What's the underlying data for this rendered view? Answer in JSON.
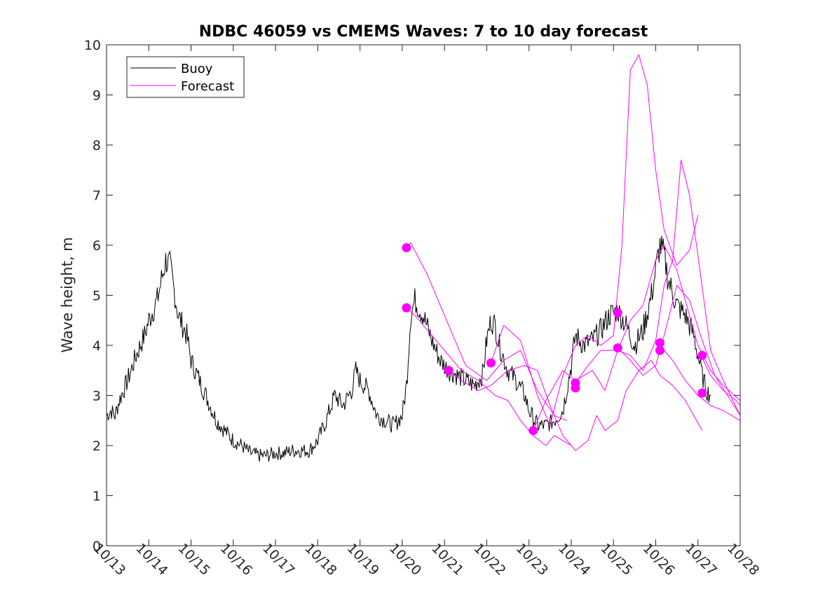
{
  "chart_data": {
    "type": "line",
    "title": "NDBC 46059 vs CMEMS Waves: 7 to 10 day forecast",
    "xlabel": "",
    "ylabel": "Wave height, m",
    "xlim": [
      13,
      28
    ],
    "ylim": [
      0,
      10
    ],
    "yticks": [
      0,
      1,
      2,
      3,
      4,
      5,
      6,
      7,
      8,
      9,
      10
    ],
    "xticks": [
      13,
      14,
      15,
      16,
      17,
      18,
      19,
      20,
      21,
      22,
      23,
      24,
      25,
      26,
      27,
      28
    ],
    "xtick_labels": [
      "10/13",
      "10/14",
      "10/15",
      "10/16",
      "10/17",
      "10/18",
      "10/19",
      "10/20",
      "10/21",
      "10/22",
      "10/23",
      "10/24",
      "10/25",
      "10/26",
      "10/27",
      "10/28"
    ],
    "legend": {
      "position": "top-left",
      "entries": [
        "Buoy",
        "Forecast"
      ]
    },
    "colors": {
      "buoy": "#000000",
      "forecast": "#ff00ff"
    },
    "series": [
      {
        "name": "Buoy",
        "x": [
          13.0,
          13.1,
          13.2,
          13.3,
          13.5,
          13.7,
          13.9,
          14.0,
          14.2,
          14.3,
          14.4,
          14.5,
          14.6,
          14.7,
          14.9,
          15.0,
          15.2,
          15.4,
          15.6,
          15.8,
          16.0,
          16.2,
          16.4,
          16.6,
          16.8,
          17.0,
          17.2,
          17.4,
          17.6,
          17.8,
          18.0,
          18.2,
          18.4,
          18.6,
          18.8,
          18.9,
          19.0,
          19.2,
          19.4,
          19.6,
          19.8,
          20.0,
          20.1,
          20.2,
          20.3,
          20.5,
          20.7,
          20.9,
          21.1,
          21.3,
          21.5,
          21.7,
          21.9,
          22.0,
          22.1,
          22.2,
          22.3,
          22.5,
          22.7,
          22.9,
          23.0,
          23.2,
          23.4,
          23.6,
          23.8,
          24.0,
          24.1,
          24.3,
          24.5,
          24.7,
          24.9,
          25.1,
          25.3,
          25.5,
          25.7,
          25.9,
          26.0,
          26.1,
          26.2,
          26.3,
          26.5,
          26.7,
          26.9,
          27.0,
          27.1,
          27.2,
          27.3
        ],
        "y": [
          2.6,
          2.7,
          2.6,
          2.9,
          3.3,
          3.8,
          4.2,
          4.5,
          4.9,
          5.3,
          5.7,
          5.6,
          5.1,
          4.6,
          4.2,
          3.7,
          3.3,
          2.9,
          2.5,
          2.3,
          2.1,
          2.0,
          1.85,
          1.8,
          1.8,
          1.85,
          1.85,
          1.9,
          1.9,
          1.9,
          2.1,
          2.5,
          3.0,
          2.8,
          3.1,
          3.5,
          3.3,
          3.1,
          2.6,
          2.5,
          2.4,
          2.6,
          3.2,
          4.6,
          4.9,
          4.6,
          4.1,
          3.7,
          3.5,
          3.4,
          3.3,
          3.2,
          3.4,
          4.1,
          4.5,
          4.4,
          4.0,
          3.5,
          3.3,
          3.0,
          2.7,
          2.4,
          2.4,
          2.5,
          2.7,
          3.6,
          4.2,
          4.0,
          4.1,
          4.3,
          4.6,
          4.7,
          4.4,
          4.0,
          4.3,
          5.0,
          5.5,
          6.0,
          5.8,
          5.3,
          4.8,
          4.6,
          4.2,
          3.8,
          3.4,
          3.1,
          3.0
        ]
      },
      {
        "name": "Forecast",
        "runs": [
          {
            "x": [
              20.1,
              20.3,
              20.6,
              21.0,
              21.4,
              21.8,
              22.2,
              22.5,
              22.8,
              23.1,
              23.4,
              23.6,
              23.8,
              24.0
            ],
            "y": [
              4.75,
              4.6,
              4.3,
              3.9,
              3.5,
              3.3,
              3.0,
              2.9,
              2.5,
              2.2,
              2.0,
              2.2,
              2.1,
              2.0
            ]
          },
          {
            "x": [
              20.1,
              20.2,
              20.6,
              21.0,
              21.5,
              22.0,
              22.4,
              22.8,
              23.2,
              23.6,
              23.9
            ],
            "y": [
              5.95,
              6.05,
              5.4,
              4.6,
              3.6,
              3.3,
              3.7,
              3.9,
              3.1,
              2.6,
              2.5
            ]
          },
          {
            "x": [
              21.1,
              21.4,
              21.8,
              22.1,
              22.5,
              22.9,
              23.2,
              23.5,
              23.8,
              24.1,
              24.4,
              24.6,
              24.8,
              25.1,
              25.3,
              25.6,
              25.9,
              26.1,
              26.4,
              26.7,
              26.9,
              27.1
            ],
            "y": [
              3.5,
              3.3,
              3.1,
              3.2,
              3.5,
              3.6,
              3.5,
              2.8,
              2.2,
              1.9,
              2.1,
              2.6,
              2.3,
              2.5,
              3.1,
              3.5,
              3.7,
              3.4,
              3.2,
              2.9,
              2.6,
              2.3
            ]
          },
          {
            "x": [
              22.1,
              22.4,
              22.8,
              23.2,
              23.5,
              23.8,
              24.1,
              24.4,
              24.7,
              25.0,
              25.2,
              25.4,
              25.6,
              25.8,
              26.0,
              26.2,
              26.5,
              26.8,
              27.0
            ],
            "y": [
              3.65,
              4.4,
              4.1,
              3.0,
              2.4,
              3.4,
              4.0,
              4.2,
              4.0,
              4.2,
              6.0,
              9.5,
              9.8,
              9.2,
              7.5,
              6.3,
              5.6,
              5.9,
              6.6
            ]
          },
          {
            "x": [
              23.1,
              23.4,
              23.8,
              24.1,
              24.5,
              24.8,
              25.1,
              25.4,
              25.7,
              26.0,
              26.2,
              26.5,
              26.8,
              27.0,
              27.3,
              27.6,
              28.0
            ],
            "y": [
              2.3,
              2.9,
              3.5,
              3.3,
              3.5,
              3.1,
              3.9,
              4.5,
              4.8,
              5.7,
              6.0,
              5.5,
              4.6,
              4.0,
              3.5,
              3.2,
              2.9
            ]
          },
          {
            "x": [
              24.1,
              24.4,
              24.7,
              25.1,
              25.4,
              25.7,
              26.0,
              26.2,
              26.4,
              26.6,
              26.8,
              27.0,
              27.3,
              27.6,
              28.0
            ],
            "y": [
              3.25,
              3.6,
              3.9,
              3.9,
              3.8,
              3.5,
              4.1,
              5.2,
              5.7,
              7.7,
              7.0,
              5.8,
              3.9,
              3.3,
              2.6
            ]
          },
          {
            "x": [
              25.1,
              25.4,
              25.7,
              26.0,
              26.2,
              26.5,
              26.8,
              27.1,
              27.4,
              27.7,
              28.0
            ],
            "y": [
              3.95,
              3.7,
              3.4,
              3.6,
              4.2,
              5.2,
              4.9,
              4.1,
              3.4,
              3.0,
              2.6
            ]
          },
          {
            "x": [
              26.1,
              26.4,
              26.7,
              27.0,
              27.3,
              27.6,
              28.0
            ],
            "y": [
              4.0,
              3.7,
              3.3,
              3.0,
              2.8,
              2.7,
              2.5
            ]
          },
          {
            "x": [
              27.1,
              27.3,
              27.6,
              27.9,
              28.0
            ],
            "y": [
              3.75,
              3.4,
              3.1,
              2.9,
              2.8
            ]
          }
        ]
      }
    ],
    "forecast_markers": [
      {
        "x": 20.1,
        "y": 5.95
      },
      {
        "x": 20.1,
        "y": 4.75
      },
      {
        "x": 21.1,
        "y": 3.5
      },
      {
        "x": 22.1,
        "y": 3.65
      },
      {
        "x": 23.1,
        "y": 2.3
      },
      {
        "x": 24.1,
        "y": 3.25
      },
      {
        "x": 24.1,
        "y": 3.15
      },
      {
        "x": 25.1,
        "y": 4.65
      },
      {
        "x": 25.1,
        "y": 3.95
      },
      {
        "x": 26.1,
        "y": 4.05
      },
      {
        "x": 26.1,
        "y": 3.9
      },
      {
        "x": 27.1,
        "y": 3.8
      },
      {
        "x": 27.1,
        "y": 3.05
      }
    ]
  }
}
